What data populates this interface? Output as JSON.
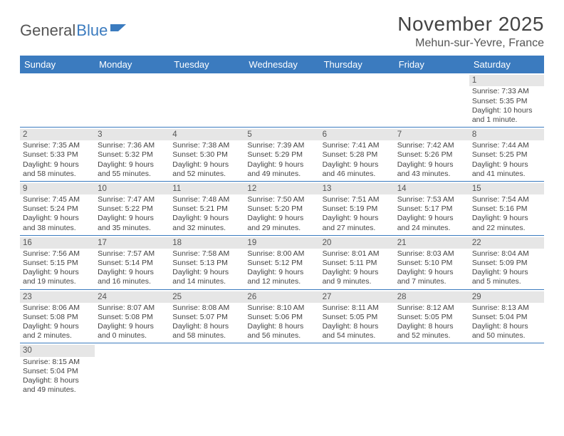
{
  "brand": {
    "part1": "General",
    "part2": "Blue"
  },
  "title": "November 2025",
  "location": "Mehun-sur-Yevre, France",
  "colors": {
    "header_bg": "#3b7bbf",
    "header_text": "#ffffff",
    "daynum_bg": "#e6e6e6",
    "rule": "#3b7bbf",
    "body_text": "#444444"
  },
  "day_labels": [
    "Sunday",
    "Monday",
    "Tuesday",
    "Wednesday",
    "Thursday",
    "Friday",
    "Saturday"
  ],
  "weeks": [
    [
      null,
      null,
      null,
      null,
      null,
      null,
      {
        "n": "1",
        "sr": "Sunrise: 7:33 AM",
        "ss": "Sunset: 5:35 PM",
        "dl": "Daylight: 10 hours and 1 minute."
      }
    ],
    [
      {
        "n": "2",
        "sr": "Sunrise: 7:35 AM",
        "ss": "Sunset: 5:33 PM",
        "dl": "Daylight: 9 hours and 58 minutes."
      },
      {
        "n": "3",
        "sr": "Sunrise: 7:36 AM",
        "ss": "Sunset: 5:32 PM",
        "dl": "Daylight: 9 hours and 55 minutes."
      },
      {
        "n": "4",
        "sr": "Sunrise: 7:38 AM",
        "ss": "Sunset: 5:30 PM",
        "dl": "Daylight: 9 hours and 52 minutes."
      },
      {
        "n": "5",
        "sr": "Sunrise: 7:39 AM",
        "ss": "Sunset: 5:29 PM",
        "dl": "Daylight: 9 hours and 49 minutes."
      },
      {
        "n": "6",
        "sr": "Sunrise: 7:41 AM",
        "ss": "Sunset: 5:28 PM",
        "dl": "Daylight: 9 hours and 46 minutes."
      },
      {
        "n": "7",
        "sr": "Sunrise: 7:42 AM",
        "ss": "Sunset: 5:26 PM",
        "dl": "Daylight: 9 hours and 43 minutes."
      },
      {
        "n": "8",
        "sr": "Sunrise: 7:44 AM",
        "ss": "Sunset: 5:25 PM",
        "dl": "Daylight: 9 hours and 41 minutes."
      }
    ],
    [
      {
        "n": "9",
        "sr": "Sunrise: 7:45 AM",
        "ss": "Sunset: 5:24 PM",
        "dl": "Daylight: 9 hours and 38 minutes."
      },
      {
        "n": "10",
        "sr": "Sunrise: 7:47 AM",
        "ss": "Sunset: 5:22 PM",
        "dl": "Daylight: 9 hours and 35 minutes."
      },
      {
        "n": "11",
        "sr": "Sunrise: 7:48 AM",
        "ss": "Sunset: 5:21 PM",
        "dl": "Daylight: 9 hours and 32 minutes."
      },
      {
        "n": "12",
        "sr": "Sunrise: 7:50 AM",
        "ss": "Sunset: 5:20 PM",
        "dl": "Daylight: 9 hours and 29 minutes."
      },
      {
        "n": "13",
        "sr": "Sunrise: 7:51 AM",
        "ss": "Sunset: 5:19 PM",
        "dl": "Daylight: 9 hours and 27 minutes."
      },
      {
        "n": "14",
        "sr": "Sunrise: 7:53 AM",
        "ss": "Sunset: 5:17 PM",
        "dl": "Daylight: 9 hours and 24 minutes."
      },
      {
        "n": "15",
        "sr": "Sunrise: 7:54 AM",
        "ss": "Sunset: 5:16 PM",
        "dl": "Daylight: 9 hours and 22 minutes."
      }
    ],
    [
      {
        "n": "16",
        "sr": "Sunrise: 7:56 AM",
        "ss": "Sunset: 5:15 PM",
        "dl": "Daylight: 9 hours and 19 minutes."
      },
      {
        "n": "17",
        "sr": "Sunrise: 7:57 AM",
        "ss": "Sunset: 5:14 PM",
        "dl": "Daylight: 9 hours and 16 minutes."
      },
      {
        "n": "18",
        "sr": "Sunrise: 7:58 AM",
        "ss": "Sunset: 5:13 PM",
        "dl": "Daylight: 9 hours and 14 minutes."
      },
      {
        "n": "19",
        "sr": "Sunrise: 8:00 AM",
        "ss": "Sunset: 5:12 PM",
        "dl": "Daylight: 9 hours and 12 minutes."
      },
      {
        "n": "20",
        "sr": "Sunrise: 8:01 AM",
        "ss": "Sunset: 5:11 PM",
        "dl": "Daylight: 9 hours and 9 minutes."
      },
      {
        "n": "21",
        "sr": "Sunrise: 8:03 AM",
        "ss": "Sunset: 5:10 PM",
        "dl": "Daylight: 9 hours and 7 minutes."
      },
      {
        "n": "22",
        "sr": "Sunrise: 8:04 AM",
        "ss": "Sunset: 5:09 PM",
        "dl": "Daylight: 9 hours and 5 minutes."
      }
    ],
    [
      {
        "n": "23",
        "sr": "Sunrise: 8:06 AM",
        "ss": "Sunset: 5:08 PM",
        "dl": "Daylight: 9 hours and 2 minutes."
      },
      {
        "n": "24",
        "sr": "Sunrise: 8:07 AM",
        "ss": "Sunset: 5:08 PM",
        "dl": "Daylight: 9 hours and 0 minutes."
      },
      {
        "n": "25",
        "sr": "Sunrise: 8:08 AM",
        "ss": "Sunset: 5:07 PM",
        "dl": "Daylight: 8 hours and 58 minutes."
      },
      {
        "n": "26",
        "sr": "Sunrise: 8:10 AM",
        "ss": "Sunset: 5:06 PM",
        "dl": "Daylight: 8 hours and 56 minutes."
      },
      {
        "n": "27",
        "sr": "Sunrise: 8:11 AM",
        "ss": "Sunset: 5:05 PM",
        "dl": "Daylight: 8 hours and 54 minutes."
      },
      {
        "n": "28",
        "sr": "Sunrise: 8:12 AM",
        "ss": "Sunset: 5:05 PM",
        "dl": "Daylight: 8 hours and 52 minutes."
      },
      {
        "n": "29",
        "sr": "Sunrise: 8:13 AM",
        "ss": "Sunset: 5:04 PM",
        "dl": "Daylight: 8 hours and 50 minutes."
      }
    ],
    [
      {
        "n": "30",
        "sr": "Sunrise: 8:15 AM",
        "ss": "Sunset: 5:04 PM",
        "dl": "Daylight: 8 hours and 49 minutes."
      },
      null,
      null,
      null,
      null,
      null,
      null
    ]
  ]
}
